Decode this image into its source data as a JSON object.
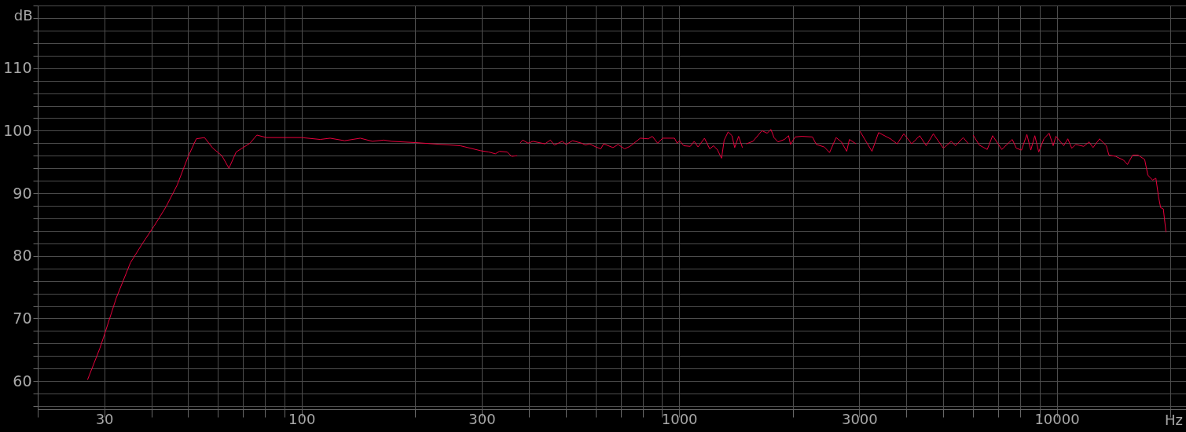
{
  "chart_data": {
    "type": "line",
    "xlabel": "Hz",
    "ylabel": "dB",
    "log": "x",
    "grid": true,
    "xlim": [
      20,
      22000
    ],
    "ylim": [
      55.5,
      120
    ],
    "xticks": [
      {
        "value": 20,
        "label": null
      },
      30,
      {
        "value": 40,
        "label": null
      },
      {
        "value": 50,
        "label": null
      },
      {
        "value": 60,
        "label": null
      },
      {
        "value": 70,
        "label": null
      },
      {
        "value": 80,
        "label": null
      },
      {
        "value": 90,
        "label": null
      },
      100,
      {
        "value": 200,
        "label": null
      },
      300,
      {
        "value": 400,
        "label": null
      },
      {
        "value": 500,
        "label": null
      },
      {
        "value": 600,
        "label": null
      },
      {
        "value": 700,
        "label": null
      },
      {
        "value": 800,
        "label": null
      },
      {
        "value": 900,
        "label": null
      },
      1000,
      {
        "value": 2000,
        "label": null
      },
      3000,
      {
        "value": 4000,
        "label": null
      },
      {
        "value": 5000,
        "label": null
      },
      {
        "value": 6000,
        "label": null
      },
      {
        "value": 7000,
        "label": null
      },
      {
        "value": 8000,
        "label": null
      },
      {
        "value": 9000,
        "label": null
      },
      10000,
      {
        "value": 20000,
        "label": null
      }
    ],
    "yticks": [
      {
        "value": 56,
        "label": null
      },
      {
        "value": 58,
        "label": null
      },
      60,
      {
        "value": 62,
        "label": null
      },
      {
        "value": 64,
        "label": null
      },
      {
        "value": 66,
        "label": null
      },
      {
        "value": 68,
        "label": null
      },
      70,
      {
        "value": 72,
        "label": null
      },
      {
        "value": 74,
        "label": null
      },
      {
        "value": 76,
        "label": null
      },
      {
        "value": 78,
        "label": null
      },
      80,
      {
        "value": 82,
        "label": null
      },
      {
        "value": 84,
        "label": null
      },
      {
        "value": 86,
        "label": null
      },
      {
        "value": 88,
        "label": null
      },
      90,
      {
        "value": 92,
        "label": null
      },
      {
        "value": 94,
        "label": null
      },
      {
        "value": 96,
        "label": null
      },
      {
        "value": 98,
        "label": null
      },
      100,
      {
        "value": 102,
        "label": null
      },
      {
        "value": 104,
        "label": null
      },
      {
        "value": 106,
        "label": null
      },
      {
        "value": 108,
        "label": null
      },
      110,
      {
        "value": 112,
        "label": null
      },
      {
        "value": 114,
        "label": null
      },
      {
        "value": 116,
        "label": null
      },
      {
        "value": 118,
        "label": null
      },
      {
        "value": 120,
        "label": null
      }
    ],
    "series": [
      {
        "color": "#e8003d",
        "x": [
          27.1,
          29.2,
          30,
          32.3,
          35.2,
          37.9,
          40.6,
          43.7,
          46.8,
          50,
          52.6,
          55.3,
          58.2,
          61.5,
          64.2,
          67.1,
          73,
          76.1,
          80.7,
          100,
          112,
          119,
          130,
          143,
          154,
          165,
          173,
          200,
          235,
          263,
          298,
          313,
          326,
          334,
          350,
          360,
          372,
          375,
          379,
          385,
          398,
          410,
          441,
          456,
          467,
          490,
          502,
          522,
          552,
          565,
          578,
          602,
          620,
          631,
          668,
          689,
          717,
          741,
          789,
          828,
          849,
          877,
          904,
          972,
          988,
          1003,
          1028,
          1070,
          1096,
          1122,
          1167,
          1205,
          1234,
          1264,
          1295,
          1316,
          1348,
          1380,
          1403,
          1437,
          1471,
          1490,
          1506,
          1568,
          1657,
          1710,
          1750,
          1783,
          1827,
          1900,
          1949,
          1972,
          2029,
          2112,
          2254,
          2308,
          2423,
          2502,
          2604,
          2690,
          2778,
          2824,
          2940,
          2980,
          3013,
          3241,
          3375,
          3627,
          3778,
          3935,
          4131,
          4336,
          4511,
          4712,
          5010,
          5258,
          5390,
          5654,
          5837,
          5920,
          6005,
          6236,
          6546,
          6764,
          7153,
          7626,
          7816,
          8068,
          8336,
          8538,
          8750,
          8961,
          9248,
          9545,
          9786,
          9950,
          10440,
          10700,
          10960,
          11230,
          11790,
          12180,
          12480,
          12990,
          13530,
          13750,
          14320,
          15030,
          15390,
          15890,
          16430,
          17100,
          17430,
          17950,
          18310,
          18610,
          18850,
          19160,
          19470
        ],
        "values": [
          60.2,
          65.2,
          67.3,
          73.3,
          78.9,
          82.0,
          84.7,
          87.8,
          91.3,
          95.8,
          98.7,
          98.9,
          97.2,
          96.0,
          94.0,
          96.6,
          98.0,
          99.3,
          98.9,
          98.9,
          98.6,
          98.8,
          98.4,
          98.8,
          98.3,
          98.5,
          98.3,
          98.1,
          97.8,
          97.6,
          96.8,
          96.6,
          96.3,
          96.7,
          96.6,
          95.9,
          96.0,
          null,
          98.0,
          98.5,
          98.0,
          98.3,
          97.9,
          98.5,
          97.7,
          98.3,
          97.8,
          98.4,
          98.0,
          97.7,
          97.9,
          97.4,
          97.1,
          97.9,
          97.3,
          97.8,
          97.1,
          97.5,
          98.8,
          98.7,
          99.1,
          98.0,
          98.8,
          98.8,
          98.0,
          98.4,
          97.6,
          97.5,
          98.3,
          97.4,
          98.8,
          97.1,
          97.6,
          96.9,
          95.6,
          98.5,
          99.8,
          99.2,
          97.3,
          99.1,
          97.3,
          null,
          97.9,
          98.3,
          100.0,
          99.6,
          100.2,
          98.9,
          98.2,
          98.6,
          99.2,
          97.8,
          99.0,
          99.1,
          99.0,
          97.8,
          97.4,
          96.5,
          98.9,
          98.2,
          96.7,
          98.6,
          97.9,
          null,
          99.9,
          96.7,
          99.7,
          98.7,
          97.9,
          99.5,
          97.9,
          99.2,
          97.6,
          99.5,
          97.2,
          98.3,
          97.6,
          98.9,
          97.9,
          null,
          99.3,
          97.7,
          97.0,
          99.2,
          97.0,
          98.6,
          97.2,
          96.9,
          99.4,
          96.9,
          99.2,
          96.6,
          98.7,
          99.6,
          97.6,
          99.1,
          97.6,
          98.7,
          97.2,
          97.8,
          97.5,
          98.2,
          97.3,
          98.7,
          97.6,
          96.1,
          95.9,
          95.3,
          94.6,
          96.1,
          96.1,
          95.4,
          92.9,
          92.1,
          92.4,
          89.4,
          87.7,
          87.5,
          83.8
        ]
      }
    ]
  }
}
